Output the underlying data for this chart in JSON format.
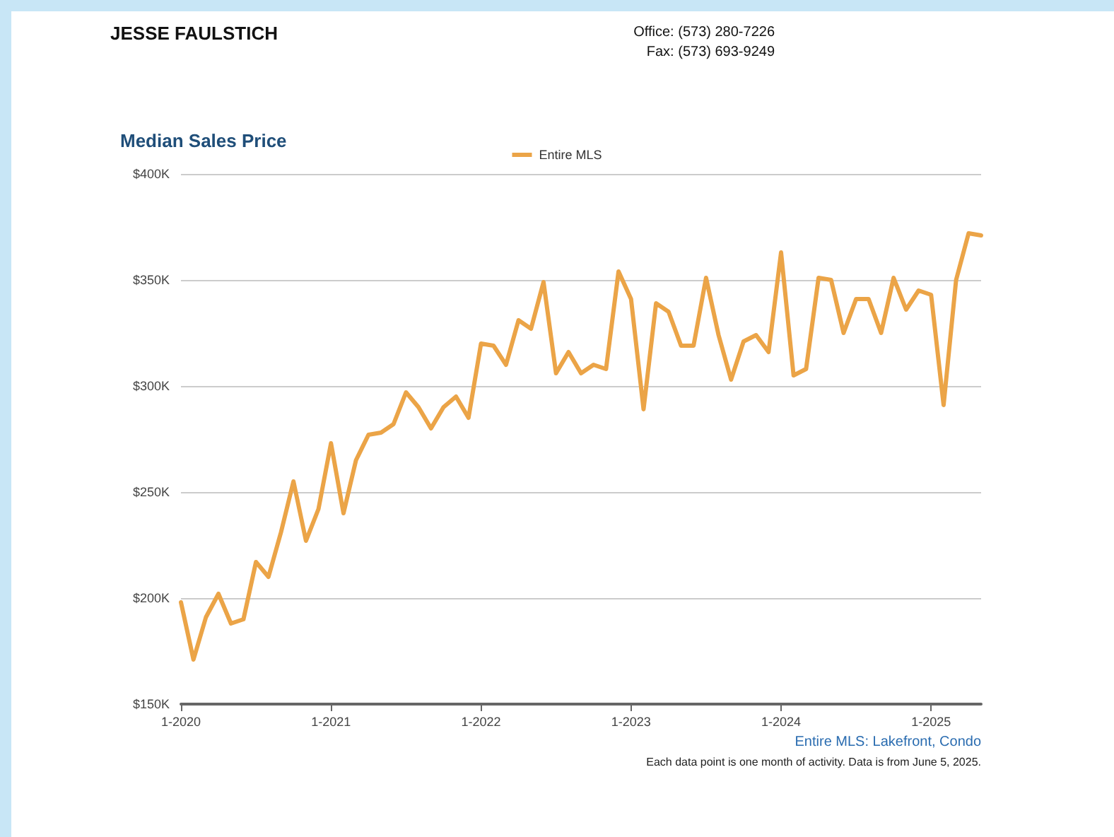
{
  "chart_data": {
    "type": "line",
    "title": "Median Sales Price",
    "categories": [
      "1-2020",
      null,
      null,
      null,
      null,
      null,
      null,
      null,
      null,
      null,
      null,
      null,
      "1-2021",
      null,
      null,
      null,
      null,
      null,
      null,
      null,
      null,
      null,
      null,
      null,
      "1-2022",
      null,
      null,
      null,
      null,
      null,
      null,
      null,
      null,
      null,
      null,
      null,
      "1-2023",
      null,
      null,
      null,
      null,
      null,
      null,
      null,
      null,
      null,
      null,
      null,
      "1-2024",
      null,
      null,
      null,
      null,
      null,
      null,
      null,
      null,
      null,
      null,
      null,
      "1-2025",
      null,
      null,
      null,
      null
    ],
    "series": [
      {
        "name": "Entire MLS",
        "color": "#eba447",
        "values": [
          198,
          171,
          191,
          202,
          188,
          190,
          217,
          210,
          231,
          255,
          227,
          242,
          273,
          240,
          265,
          277,
          278,
          282,
          297,
          290,
          280,
          290,
          295,
          285,
          320,
          319,
          310,
          331,
          327,
          349,
          306,
          316,
          306,
          310,
          308,
          354,
          341,
          289,
          339,
          335,
          319,
          319,
          351,
          324,
          303,
          321,
          324,
          316,
          363,
          305,
          308,
          351,
          350,
          325,
          341,
          341,
          325,
          351,
          336,
          345,
          343,
          291,
          350,
          372,
          371
        ]
      }
    ],
    "ylim": [
      150,
      400
    ],
    "yticks": [
      {
        "value": 150,
        "label": "$150K"
      },
      {
        "value": 200,
        "label": "$200K"
      },
      {
        "value": 250,
        "label": "$250K"
      },
      {
        "value": 300,
        "label": "$300K"
      },
      {
        "value": 350,
        "label": "$350K"
      },
      {
        "value": 400,
        "label": "$400K"
      }
    ],
    "grid": "y",
    "legend": "top",
    "marker": "none",
    "line_style": "solid",
    "annotations": [
      "JESSE FAULSTICH",
      "Office: (573) 280-7226",
      "Fax: (573) 693-9249",
      "Entire MLS: Lakefront, Condo",
      "Each data point is one month of activity. Data is from June 5, 2025."
    ]
  }
}
